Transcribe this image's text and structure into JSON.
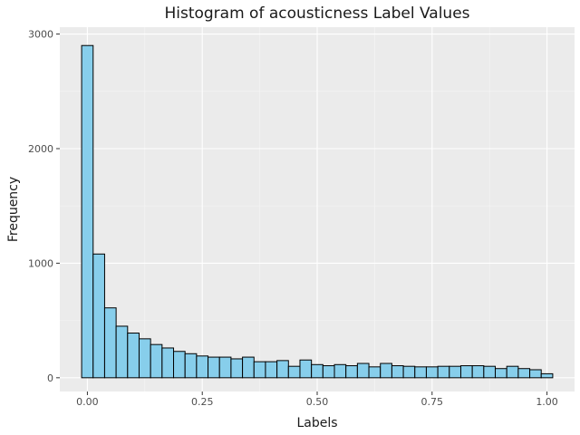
{
  "chart_data": {
    "type": "bar",
    "title": "Histogram of acousticness Label Values",
    "xlabel": "Labels",
    "ylabel": "Frequency",
    "xlim": [
      -0.06,
      1.06
    ],
    "ylim": [
      -120,
      3060
    ],
    "x_ticks": [
      0.0,
      0.25,
      0.5,
      0.75,
      1.0
    ],
    "x_tick_labels": [
      "0.00",
      "0.25",
      "0.50",
      "0.75",
      "1.00"
    ],
    "y_ticks": [
      0,
      1000,
      2000,
      3000
    ],
    "y_tick_labels": [
      "0",
      "1000",
      "2000",
      "3000"
    ],
    "bin_start": -0.0125,
    "bin_width": 0.025,
    "values": [
      2900,
      1080,
      610,
      450,
      390,
      340,
      290,
      260,
      230,
      210,
      190,
      180,
      180,
      165,
      180,
      140,
      140,
      150,
      100,
      155,
      115,
      105,
      115,
      105,
      125,
      95,
      125,
      105,
      100,
      95,
      95,
      100,
      100,
      105,
      105,
      100,
      80,
      100,
      80,
      70,
      35
    ],
    "grid": true,
    "colors": {
      "panel_bg": "#ebebeb",
      "grid_major": "#ffffff",
      "grid_minor": "#f5f5f5",
      "bar_fill": "#87ceeb",
      "bar_stroke": "#000000",
      "tick_mark": "#333333"
    }
  }
}
